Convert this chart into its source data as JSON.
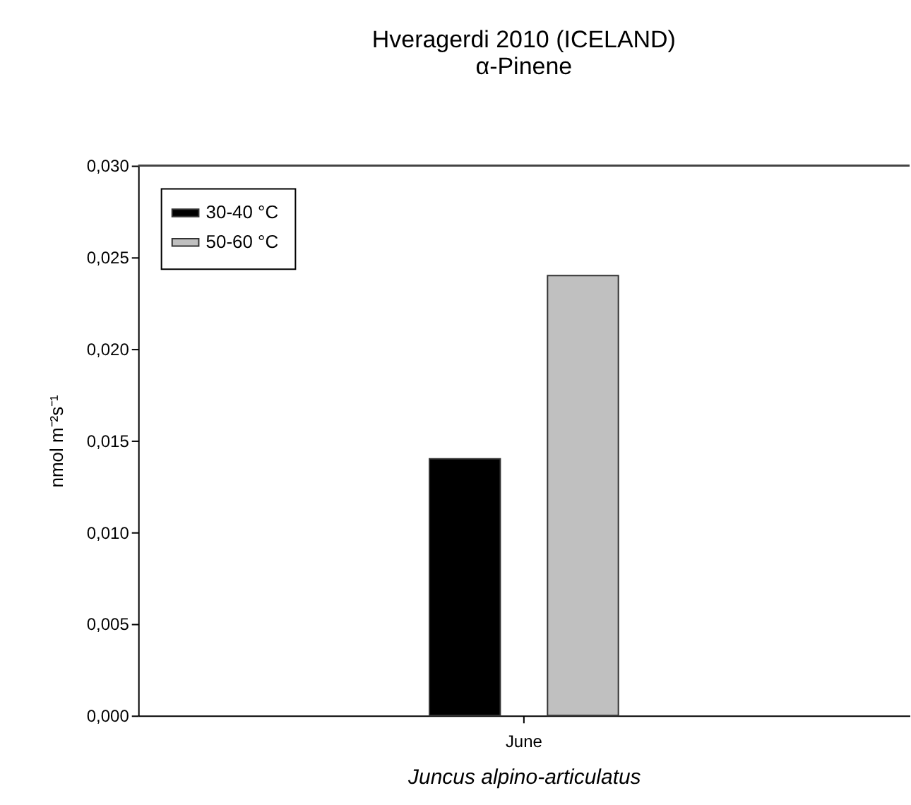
{
  "chart_data": {
    "type": "bar",
    "title": "Hveragerdi 2010 (ICELAND)",
    "subtitle": "α-Pinene",
    "xlabel": "Juncus alpino-articulatus",
    "ylabel": "nmol m⁻²s⁻¹",
    "categories": [
      "June"
    ],
    "series": [
      {
        "name": "30-40 °C",
        "color": "#000000",
        "values": [
          0.014
        ]
      },
      {
        "name": "50-60 °C",
        "color": "#c0c0c0",
        "values": [
          0.024
        ]
      }
    ],
    "ylim": [
      0,
      0.03
    ],
    "yticks": [
      {
        "value": 0,
        "label": "0,000"
      },
      {
        "value": 0.005,
        "label": "0,005"
      },
      {
        "value": 0.01,
        "label": "0,010"
      },
      {
        "value": 0.015,
        "label": "0,015"
      },
      {
        "value": 0.02,
        "label": "0,020"
      },
      {
        "value": 0.025,
        "label": "0,025"
      },
      {
        "value": 0.03,
        "label": "0,030"
      }
    ],
    "legend": "top left"
  }
}
